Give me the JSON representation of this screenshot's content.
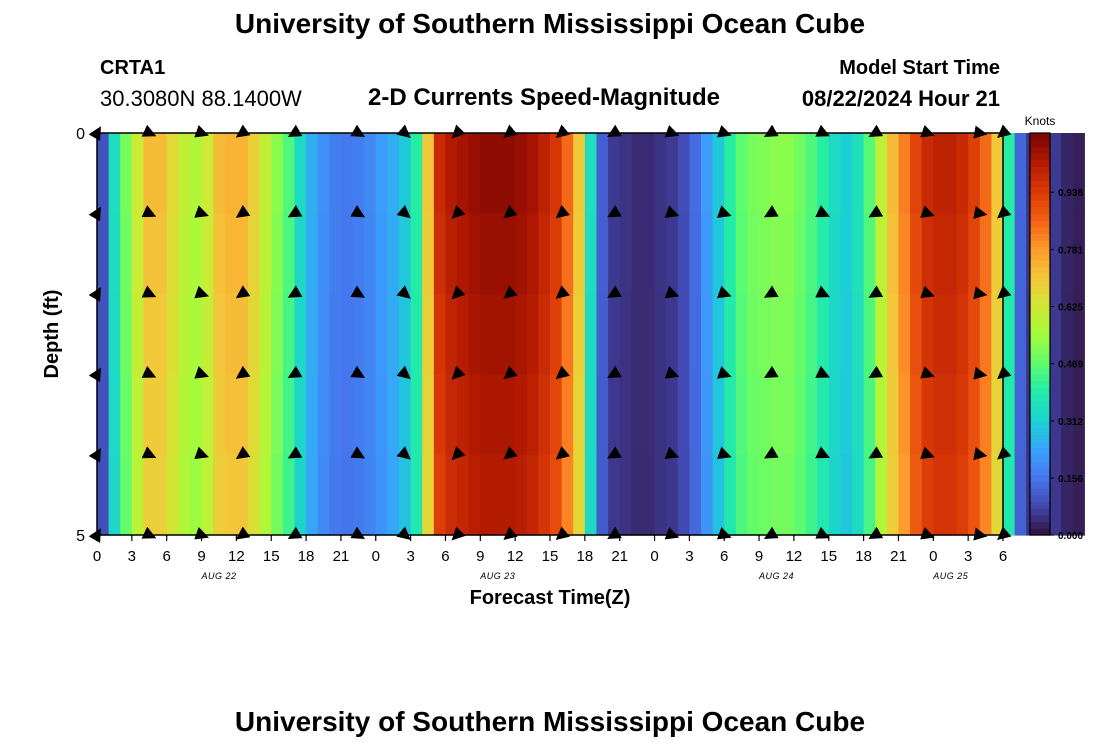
{
  "header": {
    "title": "University of Southern Mississippi Ocean Cube",
    "station_id": "CRTA1",
    "coordinates": "30.3080N  88.1400W",
    "plot_title": "2-D Currents Speed-Magnitude",
    "model_start_label": "Model Start Time",
    "model_start_value": "08/22/2024 Hour 21"
  },
  "footer": {
    "title": "University of Southern Mississippi Ocean Cube"
  },
  "chart_data": {
    "type": "heatmap",
    "title": "2-D Currents Speed-Magnitude",
    "xlabel": "Forecast Time(Z)",
    "ylabel": "Depth (ft)",
    "x_start_hour": 0,
    "x_end_hour": 78,
    "x_tick_step_hours": 3,
    "x_tick_labels": [
      "0",
      "3",
      "6",
      "9",
      "12",
      "15",
      "18",
      "21",
      "0",
      "3",
      "6",
      "9",
      "12",
      "15",
      "18",
      "21",
      "0",
      "3",
      "6",
      "9",
      "12",
      "15",
      "18",
      "21",
      "0",
      "3",
      "6"
    ],
    "date_labels": [
      {
        "text": "AUG 22",
        "hour": 10.5
      },
      {
        "text": "AUG 23",
        "hour": 34.5
      },
      {
        "text": "AUG 24",
        "hour": 58.5
      },
      {
        "text": "AUG 25",
        "hour": 73.5
      }
    ],
    "y_range": [
      0,
      5
    ],
    "y_tick_labels": [
      "0",
      "5"
    ],
    "colorbar": {
      "label": "Knots",
      "min": 0.0,
      "max": 1.1,
      "tick_values": [
        0.0,
        0.156,
        0.312,
        0.469,
        0.625,
        0.781,
        0.938
      ],
      "tick_labels": [
        "0.000",
        "0.156",
        "0.312",
        "0.469",
        "0.625",
        "0.781",
        "0.938"
      ]
    },
    "speed_unit": "knots",
    "speed_by_hour": [
      0.1,
      0.35,
      0.5,
      0.62,
      0.72,
      0.72,
      0.66,
      0.6,
      0.57,
      0.62,
      0.72,
      0.74,
      0.74,
      0.68,
      0.6,
      0.52,
      0.45,
      0.34,
      0.25,
      0.2,
      0.17,
      0.16,
      0.17,
      0.19,
      0.22,
      0.25,
      0.3,
      0.4,
      0.7,
      0.98,
      1.02,
      1.04,
      1.06,
      1.07,
      1.07,
      1.07,
      1.06,
      1.04,
      1.0,
      0.95,
      0.85,
      0.7,
      0.35,
      0.12,
      0.06,
      0.05,
      0.04,
      0.04,
      0.05,
      0.06,
      0.09,
      0.14,
      0.22,
      0.3,
      0.4,
      0.47,
      0.5,
      0.51,
      0.52,
      0.52,
      0.49,
      0.45,
      0.4,
      0.34,
      0.31,
      0.36,
      0.46,
      0.6,
      0.72,
      0.82,
      0.92,
      0.98,
      1.0,
      1.0,
      0.98,
      0.93,
      0.85,
      0.7,
      0.4,
      0.13,
      0.05,
      0.03,
      0.06,
      0.03,
      0.02,
      0.0
    ],
    "arrow_times": [
      0,
      4.5,
      9,
      12.5,
      17,
      22.5,
      26.5,
      31,
      35.5,
      40,
      44.5,
      49.5,
      54,
      58,
      62.5,
      67,
      71.5,
      76,
      78
    ],
    "arrow_depths": [
      0,
      1,
      2,
      3,
      4,
      5
    ],
    "arrow_directions_deg": [
      -60,
      25,
      20,
      145,
      150,
      30,
      40,
      135,
      140,
      140,
      150,
      20,
      20,
      150,
      25,
      150,
      20,
      10,
      140
    ]
  }
}
